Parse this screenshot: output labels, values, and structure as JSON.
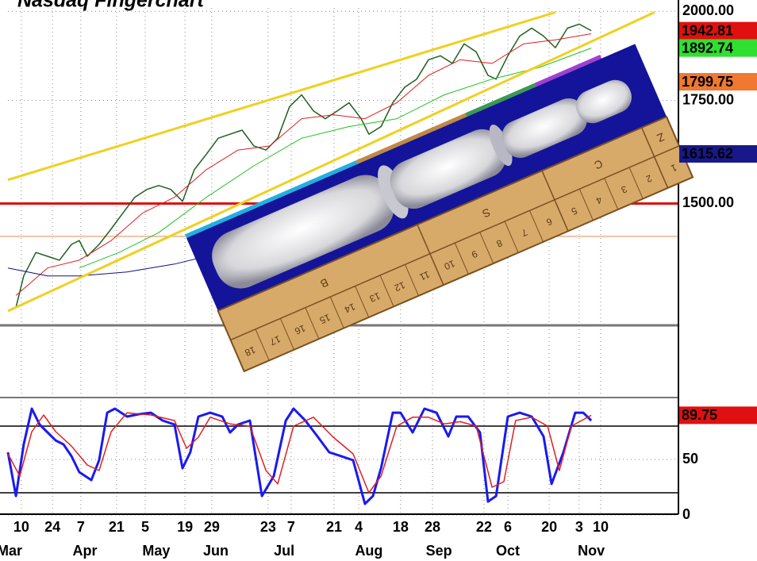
{
  "chart_data": [
    {
      "type": "line",
      "title": "Nasdaq Fingerchart",
      "log_scale": true,
      "grid": true,
      "xlim": [
        0,
        250
      ],
      "ylim": [
        1250,
        2010
      ],
      "yticks": [
        {
          "value": 1500,
          "label": "1500.00"
        },
        {
          "value": 1750,
          "label": "1750.00"
        },
        {
          "value": 2000,
          "label": "2000.00"
        }
      ],
      "series": [
        {
          "color": "#1f5f1f",
          "x": [
            3.0,
            5.9,
            10.4,
            14.8,
            19.2,
            23.7,
            26.6,
            29.6,
            34.0,
            38.5,
            42.9,
            47.3,
            51.8,
            56.2,
            60.7,
            65.1,
            69.5,
            74.0,
            78.4,
            82.8,
            87.3,
            91.7,
            96.2,
            100.6,
            105.0,
            109.5,
            113.9,
            118.3,
            122.8,
            127.2,
            131.7,
            134.6,
            139.1,
            143.5,
            147.9,
            152.4,
            156.8,
            161.2,
            165.7,
            170.1,
            174.6,
            179.0,
            182.0,
            186.4,
            190.8,
            195.3,
            199.7,
            204.1,
            208.6,
            213.0,
            217.5
          ],
          "values": [
            1284,
            1346,
            1394,
            1386,
            1378,
            1411,
            1419,
            1386,
            1411,
            1444,
            1479,
            1514,
            1532,
            1541,
            1532,
            1505,
            1578,
            1615,
            1654,
            1664,
            1674,
            1635,
            1625,
            1654,
            1734,
            1765,
            1723,
            1703,
            1723,
            1744,
            1703,
            1664,
            1683,
            1744,
            1785,
            1807,
            1860,
            1871,
            1850,
            1905,
            1882,
            1817,
            1807,
            1871,
            1927,
            1950,
            1927,
            1894,
            1950,
            1962,
            1942.81
          ]
        },
        {
          "color": "#e02020",
          "x": [
            3.0,
            14.8,
            26.6,
            38.5,
            50.3,
            62.1,
            74.0,
            85.8,
            97.6,
            109.5,
            121.3,
            133.1,
            145.0,
            156.8,
            168.6,
            180.5,
            192.3,
            204.1,
            217.5
          ],
          "values": [
            1307,
            1362,
            1378,
            1419,
            1479,
            1514,
            1578,
            1625,
            1635,
            1703,
            1713,
            1703,
            1744,
            1817,
            1860,
            1850,
            1905,
            1916,
            1934
          ]
        },
        {
          "color": "#22c022",
          "x": [
            26.6,
            41.4,
            56.2,
            74.0,
            91.7,
            109.5,
            127.2,
            145.0,
            162.7,
            180.5,
            198.2,
            217.5
          ],
          "values": [
            1362,
            1394,
            1436,
            1514,
            1587,
            1654,
            1683,
            1703,
            1765,
            1807,
            1839,
            1892.74
          ]
        },
        {
          "color": "#10107a",
          "x": [
            0,
            14.8,
            26.6,
            44.4,
            62.1,
            74.0
          ],
          "values": [
            1362,
            1346,
            1346,
            1354,
            1370,
            1386
          ]
        },
        {
          "color": "#f0d020",
          "x": [
            0,
            204.1
          ],
          "values": [
            1554,
            1997
          ]
        },
        {
          "color": "#f0d020",
          "x": [
            0,
            241.1
          ],
          "values": [
            1277,
            1997
          ]
        }
      ],
      "reference_lines": [
        {
          "value": 1500,
          "color": "#e01010"
        },
        {
          "value": 1428,
          "color": "#f0a070"
        }
      ],
      "last_values": [
        {
          "value": 1942.81,
          "color": "#e01010"
        },
        {
          "value": 1892.74,
          "color": "#30e030"
        },
        {
          "value": 1799.75,
          "color": "#f07830"
        },
        {
          "value": 1615.62,
          "color": "#18188a"
        }
      ]
    },
    {
      "type": "line",
      "grid": true,
      "xlim": [
        0,
        250
      ],
      "ylim": [
        0,
        100
      ],
      "yticks": [
        0,
        50
      ],
      "levels": [
        20,
        80
      ],
      "series": [
        {
          "color": "#1a1af0",
          "x": [
            0,
            3.0,
            5.9,
            8.9,
            11.8,
            14.8,
            17.8,
            20.7,
            23.7,
            26.6,
            31.1,
            34.0,
            37.0,
            39.9,
            44.4,
            48.8,
            53.3,
            57.7,
            62.1,
            65.1,
            68.0,
            71.0,
            75.4,
            79.9,
            82.8,
            85.8,
            90.2,
            94.7,
            99.1,
            103.6,
            106.5,
            110.9,
            115.4,
            119.8,
            124.3,
            128.7,
            133.1,
            136.1,
            139.1,
            143.5,
            146.4,
            150.9,
            155.3,
            159.8,
            164.2,
            167.2,
            171.6,
            176.0,
            179.0,
            182.0,
            186.4,
            190.8,
            195.3,
            199.7,
            202.7,
            207.1,
            211.5,
            214.5,
            217.5
          ],
          "values": [
            56.4,
            17.1,
            63.6,
            95.7,
            81.4,
            74.3,
            67.1,
            63.6,
            52.9,
            38.6,
            31.4,
            49.3,
            92.1,
            95.7,
            88.6,
            90.7,
            92.1,
            85,
            81.4,
            42.1,
            56.4,
            88.6,
            92.1,
            88.6,
            74.3,
            81.4,
            85,
            17.1,
            35,
            85,
            95.7,
            85,
            70.7,
            56.4,
            52.9,
            49.3,
            10,
            17.1,
            42.1,
            92.1,
            92.1,
            74.3,
            95.7,
            92.1,
            70.7,
            88.6,
            88.6,
            74.3,
            12.1,
            17.1,
            88.6,
            92.1,
            88.6,
            70.7,
            27.9,
            56.4,
            92.1,
            92.1,
            85
          ]
        },
        {
          "color": "#e02020",
          "x": [
            0,
            4.4,
            8.9,
            13.3,
            17.8,
            23.7,
            29.6,
            34.0,
            38.5,
            44.4,
            53.3,
            62.1,
            66.6,
            71.0,
            75.4,
            82.8,
            90.2,
            96.2,
            100.6,
            106.5,
            113.9,
            121.3,
            128.7,
            134.6,
            139.1,
            145.0,
            150.9,
            156.8,
            162.7,
            168.6,
            174.6,
            180.5,
            184.9,
            189.3,
            195.3,
            201.2,
            205.6,
            210.1,
            217.5
          ],
          "values": [
            55,
            35,
            75,
            90,
            75,
            62,
            45,
            40,
            75,
            92,
            90,
            85,
            60,
            70,
            88,
            82,
            80,
            40,
            28,
            80,
            88,
            70,
            55,
            20,
            35,
            80,
            88,
            88,
            82,
            84,
            80,
            25,
            30,
            85,
            88,
            80,
            40,
            80,
            89.75
          ]
        }
      ],
      "last_values": [
        {
          "value": 89.75,
          "color": "#e01010"
        }
      ],
      "xticks": [
        {
          "value": 5.0,
          "label": "10"
        },
        {
          "value": 16.6,
          "label": "24"
        },
        {
          "value": 27.2,
          "label": "7"
        },
        {
          "value": 40.5,
          "label": "21"
        },
        {
          "value": 51.2,
          "label": "5"
        },
        {
          "value": 66.0,
          "label": "19"
        },
        {
          "value": 76.0,
          "label": "29"
        },
        {
          "value": 97.0,
          "label": "23"
        },
        {
          "value": 105.6,
          "label": "7"
        },
        {
          "value": 121.6,
          "label": "21"
        },
        {
          "value": 130.8,
          "label": "4"
        },
        {
          "value": 146.4,
          "label": "18"
        },
        {
          "value": 158.3,
          "label": "28"
        },
        {
          "value": 177.5,
          "label": "22"
        },
        {
          "value": 186.4,
          "label": "6"
        },
        {
          "value": 201.8,
          "label": "20"
        },
        {
          "value": 213.0,
          "label": "3"
        },
        {
          "value": 221.0,
          "label": "10"
        }
      ],
      "month_labels": [
        {
          "value": 0.6,
          "label": "Mar"
        },
        {
          "value": 28.7,
          "label": "Apr"
        },
        {
          "value": 55.3,
          "label": "May"
        },
        {
          "value": 77.5,
          "label": "Jun"
        },
        {
          "value": 103,
          "label": "Jul"
        },
        {
          "value": 134.6,
          "label": "Aug"
        },
        {
          "value": 160.7,
          "label": "Sep"
        },
        {
          "value": 186.4,
          "label": "Oct"
        },
        {
          "value": 217.5,
          "label": "Nov"
        }
      ]
    }
  ],
  "overlay": {
    "sections": [
      "B",
      "S",
      "C",
      "Z"
    ],
    "section_sizes": [
      8,
      5,
      4,
      1
    ],
    "numbers": [
      "18",
      "17",
      "16",
      "15",
      "14",
      "13",
      "12",
      "11",
      "10",
      "9",
      "8",
      "7",
      "6",
      "5",
      "4",
      "3",
      "2",
      "1"
    ]
  }
}
